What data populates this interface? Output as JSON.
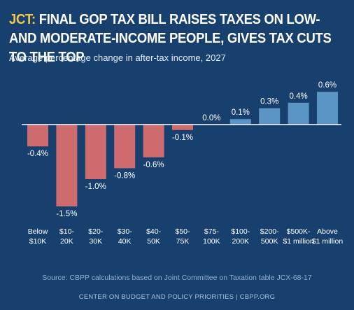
{
  "headline": {
    "prefix": "JCT:",
    "text": " Final GOP Tax Bill Raises Taxes on Low- and Moderate-Income People, Gives Tax Cuts to the Top"
  },
  "subtitle": "Average percentage change in after-tax income, 2027",
  "source": "Source: CBPP calculations based on Joint Committee on Taxation table JCX-68-17",
  "footer": "CENTER ON BUDGET AND POLICY PRIORITIES | CBPP.ORG",
  "colors": {
    "negative": "#cd6b6e",
    "positive": "#5b95c6",
    "background": "#17406e",
    "accent": "#f2c84b"
  },
  "chart_data": {
    "type": "bar",
    "categories": [
      [
        "Below",
        "$10K"
      ],
      [
        "$10-",
        "20K"
      ],
      [
        "$20-",
        "30K"
      ],
      [
        "$30-",
        "40K"
      ],
      [
        "$40-",
        "50K"
      ],
      [
        "$50-",
        "75K"
      ],
      [
        "$75-",
        "100K"
      ],
      [
        "$100-",
        "200K"
      ],
      [
        "$200-",
        "500K"
      ],
      [
        "$500K-",
        "$1 million"
      ],
      [
        "Above",
        "$1 million"
      ]
    ],
    "values": [
      -0.4,
      -1.5,
      -1.0,
      -0.8,
      -0.6,
      -0.1,
      0.0,
      0.1,
      0.3,
      0.4,
      0.6
    ],
    "value_labels": [
      "-0.4%",
      "-1.5%",
      "-1.0%",
      "-0.8%",
      "-0.6%",
      "-0.1%",
      "0.0%",
      "0.1%",
      "0.3%",
      "0.4%",
      "0.6%"
    ],
    "title": "Final GOP Tax Bill Raises Taxes on Low- and Moderate-Income People, Gives Tax Cuts to the Top",
    "subtitle": "Average percentage change in after-tax income, 2027",
    "ylim": [
      -1.5,
      0.6
    ],
    "grid": false,
    "legend": "none"
  }
}
